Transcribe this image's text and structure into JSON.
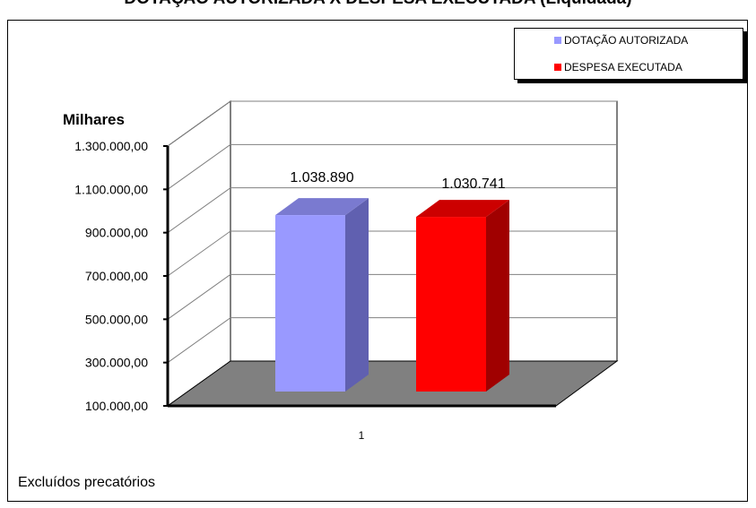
{
  "title": "DOTAÇÃO AUTORIZADA X DESPESA EXECUTADA (Liquidada)",
  "footnote": "Excluídos precatórios",
  "chart_data": {
    "type": "bar",
    "categories": [
      "1"
    ],
    "series": [
      {
        "name": "DOTAÇÃO AUTORIZADA",
        "values": [
          1038890
        ],
        "value_label": "1.038.890",
        "color": "#9999ff"
      },
      {
        "name": "DESPESA EXECUTADA",
        "values": [
          1030741
        ],
        "value_label": "1.030.741",
        "color": "#ff0000"
      }
    ],
    "ylabel": "Milhares",
    "yticks": [
      "100.000,00",
      "300.000,00",
      "500.000,00",
      "700.000,00",
      "900.000,00",
      "1.100.000,00",
      "1.300.000,00"
    ],
    "ylim": [
      100000,
      1300000
    ],
    "grid": true,
    "legend_position": "top-right",
    "three_d": true
  }
}
